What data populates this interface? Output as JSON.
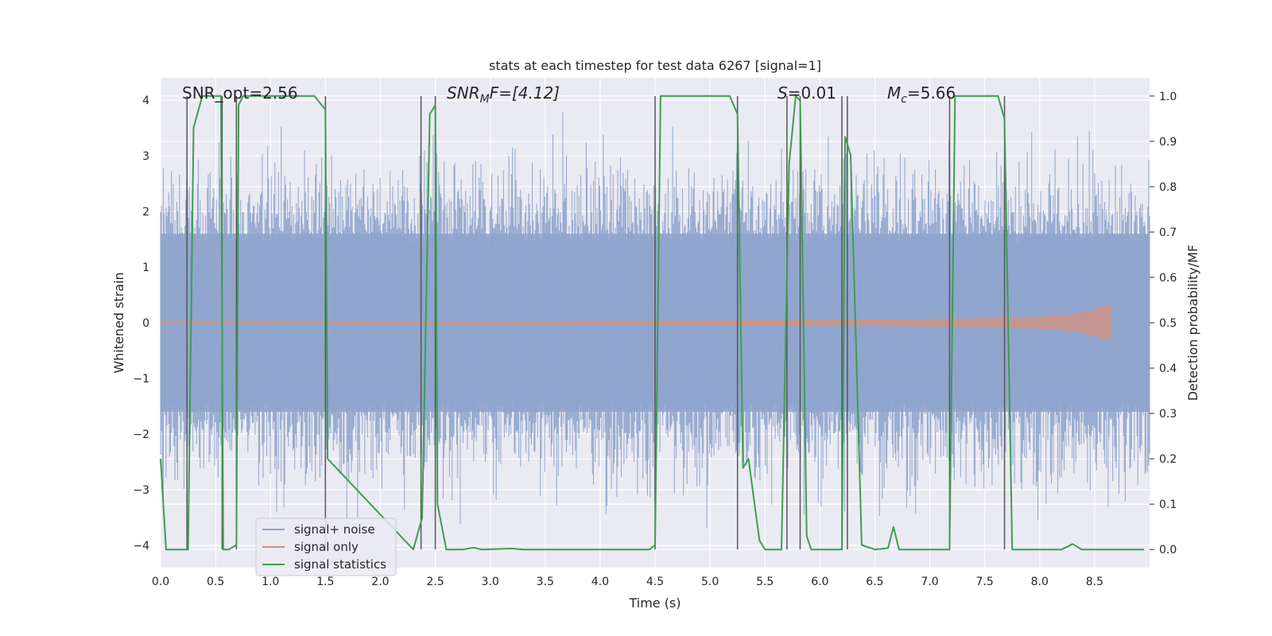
{
  "chart_data": {
    "type": "line",
    "title": "stats at each timestep for test data 6267 [signal=1]",
    "xlabel": "Time (s)",
    "ylabel_left": "Whitened strain",
    "ylabel_right": "Detection probability/MF",
    "xlim": [
      0,
      9.0
    ],
    "ylim_left": [
      -4.4,
      4.4
    ],
    "ylim_right": [
      -0.04,
      1.04
    ],
    "xticks": [
      "0.0",
      "0.5",
      "1.0",
      "1.5",
      "2.0",
      "2.5",
      "3.0",
      "3.5",
      "4.0",
      "4.5",
      "5.0",
      "5.5",
      "6.0",
      "6.5",
      "7.0",
      "7.5",
      "8.0",
      "8.5"
    ],
    "yticks_left": [
      "4",
      "3",
      "2",
      "1",
      "0",
      "−1",
      "−2",
      "−3",
      "−4"
    ],
    "yticks_right": [
      "1.0",
      "0.9",
      "0.8",
      "0.7",
      "0.6",
      "0.5",
      "0.4",
      "0.3",
      "0.2",
      "0.1",
      "0.0"
    ],
    "grid": true,
    "legend_position": "lower-left",
    "annotations": {
      "snr_opt": "SNR_opt=2.56",
      "snr_mf_sym": "SNR",
      "snr_mf_sub": "M",
      "snr_mf_tail": "F=[4.12]",
      "s_sym": "S",
      "s_tail": "=0.01",
      "mc_sym": "M",
      "mc_sub": "c",
      "mc_tail": "=5.66"
    },
    "series": [
      {
        "name": "signal+ noise",
        "color": "#8fa4cc",
        "envelope": {
          "x_end": 9.0,
          "typical_amplitude": 1.6,
          "peak_amplitude": 3.8
        }
      },
      {
        "name": "signal only",
        "color": "#d4917c",
        "envelope": {
          "x": [
            0,
            3.0,
            5.0,
            6.5,
            7.5,
            8.0,
            8.3,
            8.5,
            8.6,
            8.65
          ],
          "amplitude": [
            0.005,
            0.02,
            0.03,
            0.05,
            0.07,
            0.1,
            0.14,
            0.22,
            0.3,
            0.3
          ]
        }
      },
      {
        "name": "signal statistics",
        "color": "#3d9e4f",
        "axis": "right",
        "x": [
          0.0,
          0.05,
          0.25,
          0.3,
          0.38,
          0.55,
          0.57,
          0.62,
          0.69,
          0.71,
          0.75,
          1.4,
          1.5,
          1.52,
          2.3,
          2.38,
          2.45,
          2.5,
          2.52,
          2.6,
          2.75,
          2.85,
          2.92,
          3.2,
          3.3,
          4.45,
          4.5,
          4.55,
          5.18,
          5.25,
          5.3,
          5.35,
          5.45,
          5.5,
          5.65,
          5.72,
          5.78,
          5.82,
          5.88,
          5.92,
          6.2,
          6.23,
          6.28,
          6.38,
          6.5,
          6.62,
          6.67,
          6.72,
          7.18,
          7.23,
          7.62,
          7.68,
          7.75,
          8.2,
          8.3,
          8.38,
          8.95
        ],
        "y": [
          0.2,
          0.0,
          0.0,
          0.93,
          1.0,
          1.0,
          0.0,
          0.0,
          0.01,
          0.98,
          1.0,
          1.0,
          0.97,
          0.2,
          0.0,
          0.07,
          0.96,
          0.98,
          0.1,
          0.0,
          0.0,
          0.004,
          0.0,
          0.002,
          0.0,
          0.0,
          0.01,
          1.0,
          1.0,
          0.96,
          0.18,
          0.2,
          0.02,
          0.0,
          0.0,
          0.85,
          1.0,
          0.99,
          0.03,
          0.0,
          0.0,
          0.91,
          0.87,
          0.01,
          0.0,
          0.003,
          0.05,
          0.0,
          0.0,
          1.0,
          1.0,
          0.95,
          0.0,
          0.0,
          0.012,
          0.0,
          0.0
        ]
      }
    ],
    "vertical_lines_x": [
      0.24,
      0.56,
      0.69,
      1.5,
      2.37,
      2.5,
      4.5,
      5.25,
      5.7,
      5.82,
      6.2,
      6.25,
      7.18,
      7.68
    ]
  }
}
